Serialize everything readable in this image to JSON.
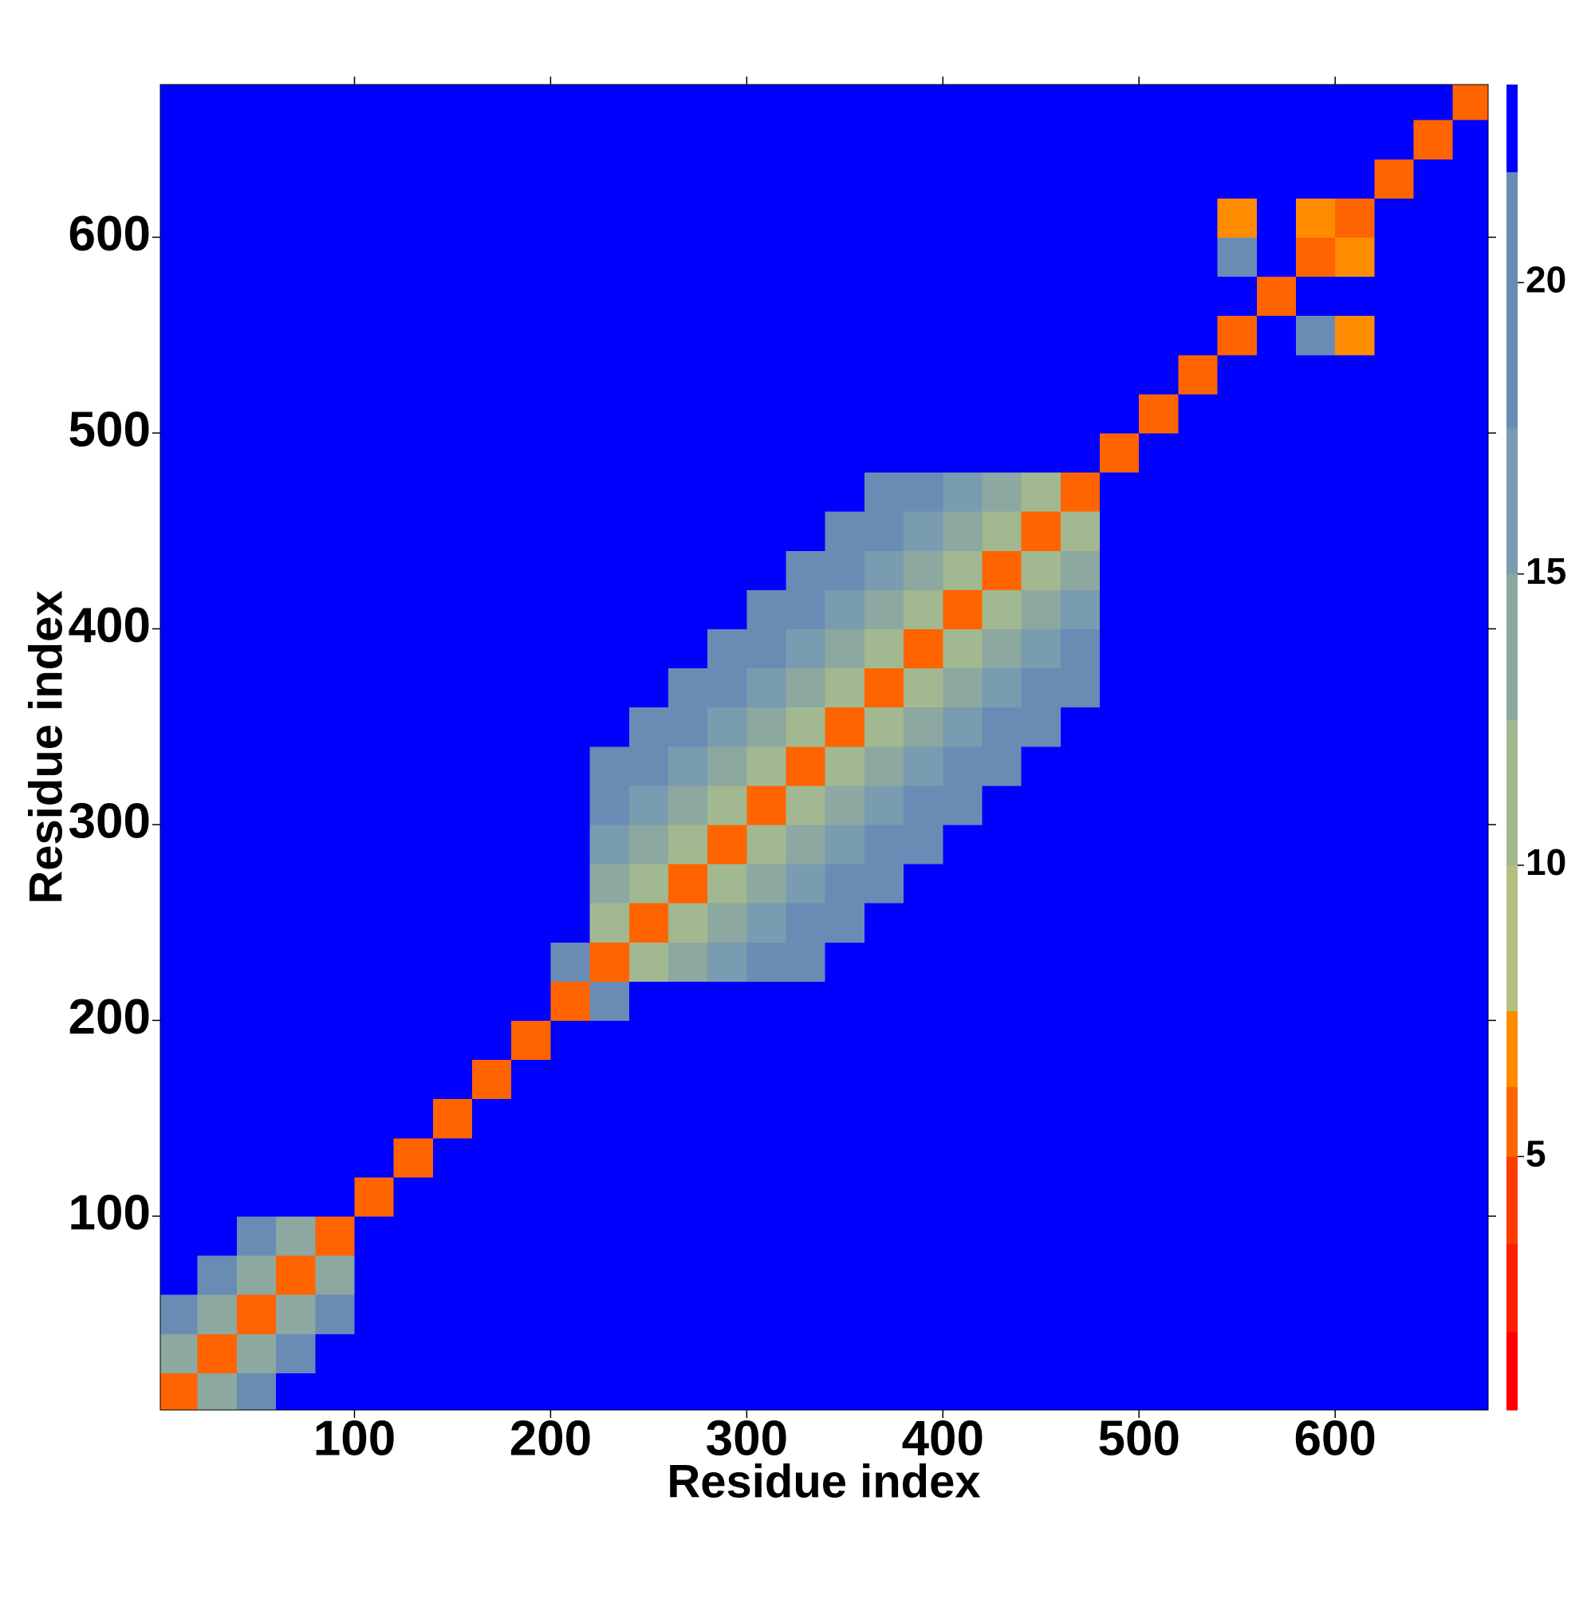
{
  "chart_data": {
    "type": "heatmap",
    "xlabel": "Residue index",
    "ylabel": "Residue index",
    "x": [
      10,
      30,
      50,
      70,
      90,
      110,
      130,
      150,
      170,
      190,
      210,
      230,
      250,
      270,
      290,
      310,
      330,
      350,
      370,
      390,
      410,
      430,
      450,
      470,
      490,
      510,
      530,
      550,
      570,
      590,
      610,
      630,
      650,
      670
    ],
    "y": [
      10,
      30,
      50,
      70,
      90,
      110,
      130,
      150,
      170,
      190,
      210,
      230,
      250,
      270,
      290,
      310,
      330,
      350,
      370,
      390,
      410,
      430,
      450,
      470,
      490,
      510,
      530,
      550,
      570,
      590,
      610,
      630,
      650,
      670
    ],
    "xlim": [
      1,
      678
    ],
    "ylim": [
      1,
      678
    ],
    "xticks": [
      100,
      200,
      300,
      400,
      500,
      600
    ],
    "yticks": [
      100,
      200,
      300,
      400,
      500,
      600
    ],
    "colorbar": {
      "lim": [
        0.65,
        23.4
      ],
      "ticks": [
        5,
        10,
        15,
        20
      ],
      "bounds": [
        0.65,
        2,
        3.5,
        5,
        6.2,
        7.5,
        10,
        12.5,
        15,
        17.5,
        21.9,
        23.4
      ],
      "colors": [
        "#ff0000",
        "#ff1e00",
        "#ff3c00",
        "#ff6400",
        "#ff8c00",
        "#b4c080",
        "#a2b890",
        "#8ca8a0",
        "#7a9cb0",
        "#6a8cb4",
        "#0000ff"
      ]
    },
    "z": [
      [
        6,
        13,
        18,
        23,
        23,
        23,
        23,
        23,
        23,
        23,
        23,
        23,
        23,
        23,
        23,
        23,
        23,
        23,
        23,
        23,
        23,
        23,
        23,
        23,
        23,
        23,
        23,
        23,
        23,
        23,
        23,
        23,
        23,
        23
      ],
      [
        13,
        6,
        13,
        18,
        23,
        23,
        23,
        23,
        23,
        23,
        23,
        23,
        23,
        23,
        23,
        23,
        23,
        23,
        23,
        23,
        23,
        23,
        23,
        23,
        23,
        23,
        23,
        23,
        23,
        23,
        23,
        23,
        23,
        23
      ],
      [
        18,
        13,
        6,
        13,
        18,
        23,
        23,
        23,
        23,
        23,
        23,
        23,
        23,
        23,
        23,
        23,
        23,
        23,
        23,
        23,
        23,
        23,
        23,
        23,
        23,
        23,
        23,
        23,
        23,
        23,
        23,
        23,
        23,
        23
      ],
      [
        23,
        18,
        13,
        6,
        13,
        23,
        23,
        23,
        23,
        23,
        23,
        23,
        23,
        23,
        23,
        23,
        23,
        23,
        23,
        23,
        23,
        23,
        23,
        23,
        23,
        23,
        23,
        23,
        23,
        23,
        23,
        23,
        23,
        23
      ],
      [
        23,
        23,
        18,
        13,
        6,
        23,
        23,
        23,
        23,
        23,
        23,
        23,
        23,
        23,
        23,
        23,
        23,
        23,
        23,
        23,
        23,
        23,
        23,
        23,
        23,
        23,
        23,
        23,
        23,
        23,
        23,
        23,
        23,
        23
      ],
      [
        23,
        23,
        23,
        23,
        23,
        6,
        23,
        23,
        23,
        23,
        23,
        23,
        23,
        23,
        23,
        23,
        23,
        23,
        23,
        23,
        23,
        23,
        23,
        23,
        23,
        23,
        23,
        23,
        23,
        23,
        23,
        23,
        23,
        23
      ],
      [
        23,
        23,
        23,
        23,
        23,
        23,
        6,
        23,
        23,
        23,
        23,
        23,
        23,
        23,
        23,
        23,
        23,
        23,
        23,
        23,
        23,
        23,
        23,
        23,
        23,
        23,
        23,
        23,
        23,
        23,
        23,
        23,
        23,
        23
      ],
      [
        23,
        23,
        23,
        23,
        23,
        23,
        23,
        6,
        23,
        23,
        23,
        23,
        23,
        23,
        23,
        23,
        23,
        23,
        23,
        23,
        23,
        23,
        23,
        23,
        23,
        23,
        23,
        23,
        23,
        23,
        23,
        23,
        23,
        23
      ],
      [
        23,
        23,
        23,
        23,
        23,
        23,
        23,
        23,
        6,
        23,
        23,
        23,
        23,
        23,
        23,
        23,
        23,
        23,
        23,
        23,
        23,
        23,
        23,
        23,
        23,
        23,
        23,
        23,
        23,
        23,
        23,
        23,
        23,
        23
      ],
      [
        23,
        23,
        23,
        23,
        23,
        23,
        23,
        23,
        23,
        6,
        23,
        23,
        23,
        23,
        23,
        23,
        23,
        23,
        23,
        23,
        23,
        23,
        23,
        23,
        23,
        23,
        23,
        23,
        23,
        23,
        23,
        23,
        23,
        23
      ],
      [
        23,
        23,
        23,
        23,
        23,
        23,
        23,
        23,
        23,
        23,
        6,
        18,
        23,
        23,
        23,
        23,
        23,
        23,
        23,
        23,
        23,
        23,
        23,
        23,
        23,
        23,
        23,
        23,
        23,
        23,
        23,
        23,
        23,
        23
      ],
      [
        23,
        23,
        23,
        23,
        23,
        23,
        23,
        23,
        23,
        23,
        18,
        5,
        11,
        14,
        16,
        18,
        20,
        23,
        23,
        23,
        23,
        23,
        23,
        23,
        23,
        23,
        23,
        23,
        23,
        23,
        23,
        23,
        23,
        23
      ],
      [
        23,
        23,
        23,
        23,
        23,
        23,
        23,
        23,
        23,
        23,
        23,
        11,
        5,
        11,
        14,
        16,
        18,
        20,
        23,
        23,
        23,
        23,
        23,
        23,
        23,
        23,
        23,
        23,
        23,
        23,
        23,
        23,
        23,
        23
      ],
      [
        23,
        23,
        23,
        23,
        23,
        23,
        23,
        23,
        23,
        23,
        23,
        14,
        11,
        5,
        11,
        14,
        16,
        18,
        20,
        23,
        23,
        23,
        23,
        23,
        23,
        23,
        23,
        23,
        23,
        23,
        23,
        23,
        23,
        23
      ],
      [
        23,
        23,
        23,
        23,
        23,
        23,
        23,
        23,
        23,
        23,
        23,
        16,
        14,
        11,
        5,
        11,
        14,
        16,
        18,
        20,
        23,
        23,
        23,
        23,
        23,
        23,
        23,
        23,
        23,
        23,
        23,
        23,
        23,
        23
      ],
      [
        23,
        23,
        23,
        23,
        23,
        23,
        23,
        23,
        23,
        23,
        23,
        18,
        16,
        14,
        11,
        5,
        11,
        14,
        16,
        18,
        20,
        23,
        23,
        23,
        23,
        23,
        23,
        23,
        23,
        23,
        23,
        23,
        23,
        23
      ],
      [
        23,
        23,
        23,
        23,
        23,
        23,
        23,
        23,
        23,
        23,
        23,
        20,
        18,
        16,
        14,
        11,
        5,
        11,
        14,
        16,
        18,
        20,
        23,
        23,
        23,
        23,
        23,
        23,
        23,
        23,
        23,
        23,
        23,
        23
      ],
      [
        23,
        23,
        23,
        23,
        23,
        23,
        23,
        23,
        23,
        23,
        23,
        23,
        20,
        18,
        16,
        14,
        11,
        5,
        11,
        14,
        16,
        18,
        20,
        23,
        23,
        23,
        23,
        23,
        23,
        23,
        23,
        23,
        23,
        23
      ],
      [
        23,
        23,
        23,
        23,
        23,
        23,
        23,
        23,
        23,
        23,
        23,
        23,
        23,
        20,
        18,
        16,
        14,
        11,
        5,
        11,
        14,
        16,
        18,
        20,
        23,
        23,
        23,
        23,
        23,
        23,
        23,
        23,
        23,
        23
      ],
      [
        23,
        23,
        23,
        23,
        23,
        23,
        23,
        23,
        23,
        23,
        23,
        23,
        23,
        23,
        20,
        18,
        16,
        14,
        11,
        5,
        11,
        14,
        16,
        18,
        23,
        23,
        23,
        23,
        23,
        23,
        23,
        23,
        23,
        23
      ],
      [
        23,
        23,
        23,
        23,
        23,
        23,
        23,
        23,
        23,
        23,
        23,
        23,
        23,
        23,
        23,
        20,
        18,
        16,
        14,
        11,
        5,
        11,
        14,
        16,
        23,
        23,
        23,
        23,
        23,
        23,
        23,
        23,
        23,
        23
      ],
      [
        23,
        23,
        23,
        23,
        23,
        23,
        23,
        23,
        23,
        23,
        23,
        23,
        23,
        23,
        23,
        23,
        20,
        18,
        16,
        14,
        11,
        5,
        11,
        14,
        23,
        23,
        23,
        23,
        23,
        23,
        23,
        23,
        23,
        23
      ],
      [
        23,
        23,
        23,
        23,
        23,
        23,
        23,
        23,
        23,
        23,
        23,
        23,
        23,
        23,
        23,
        23,
        23,
        20,
        18,
        16,
        14,
        11,
        5,
        11,
        23,
        23,
        23,
        23,
        23,
        23,
        23,
        23,
        23,
        23
      ],
      [
        23,
        23,
        23,
        23,
        23,
        23,
        23,
        23,
        23,
        23,
        23,
        23,
        23,
        23,
        23,
        23,
        23,
        23,
        20,
        18,
        16,
        14,
        11,
        5,
        23,
        23,
        23,
        23,
        23,
        23,
        23,
        23,
        23,
        23
      ],
      [
        23,
        23,
        23,
        23,
        23,
        23,
        23,
        23,
        23,
        23,
        23,
        23,
        23,
        23,
        23,
        23,
        23,
        23,
        23,
        23,
        23,
        23,
        23,
        23,
        6,
        23,
        23,
        23,
        23,
        23,
        23,
        23,
        23,
        23
      ],
      [
        23,
        23,
        23,
        23,
        23,
        23,
        23,
        23,
        23,
        23,
        23,
        23,
        23,
        23,
        23,
        23,
        23,
        23,
        23,
        23,
        23,
        23,
        23,
        23,
        23,
        6,
        23,
        23,
        23,
        23,
        23,
        23,
        23,
        23
      ],
      [
        23,
        23,
        23,
        23,
        23,
        23,
        23,
        23,
        23,
        23,
        23,
        23,
        23,
        23,
        23,
        23,
        23,
        23,
        23,
        23,
        23,
        23,
        23,
        23,
        23,
        23,
        6,
        23,
        23,
        23,
        23,
        23,
        23,
        23
      ],
      [
        23,
        23,
        23,
        23,
        23,
        23,
        23,
        23,
        23,
        23,
        23,
        23,
        23,
        23,
        23,
        23,
        23,
        23,
        23,
        23,
        23,
        23,
        23,
        23,
        23,
        23,
        23,
        6,
        23,
        19,
        7,
        23,
        23,
        23
      ],
      [
        23,
        23,
        23,
        23,
        23,
        23,
        23,
        23,
        23,
        23,
        23,
        23,
        23,
        23,
        23,
        23,
        23,
        23,
        23,
        23,
        23,
        23,
        23,
        23,
        23,
        23,
        23,
        23,
        6,
        23,
        23,
        23,
        23,
        23
      ],
      [
        23,
        23,
        23,
        23,
        23,
        23,
        23,
        23,
        23,
        23,
        23,
        23,
        23,
        23,
        23,
        23,
        23,
        23,
        23,
        23,
        23,
        23,
        23,
        23,
        23,
        23,
        23,
        19,
        23,
        6,
        7,
        23,
        23,
        23
      ],
      [
        23,
        23,
        23,
        23,
        23,
        23,
        23,
        23,
        23,
        23,
        23,
        23,
        23,
        23,
        23,
        23,
        23,
        23,
        23,
        23,
        23,
        23,
        23,
        23,
        23,
        23,
        23,
        7,
        23,
        7,
        6,
        23,
        23,
        23
      ],
      [
        23,
        23,
        23,
        23,
        23,
        23,
        23,
        23,
        23,
        23,
        23,
        23,
        23,
        23,
        23,
        23,
        23,
        23,
        23,
        23,
        23,
        23,
        23,
        23,
        23,
        23,
        23,
        23,
        23,
        23,
        23,
        6,
        23,
        23
      ],
      [
        23,
        23,
        23,
        23,
        23,
        23,
        23,
        23,
        23,
        23,
        23,
        23,
        23,
        23,
        23,
        23,
        23,
        23,
        23,
        23,
        23,
        23,
        23,
        23,
        23,
        23,
        23,
        23,
        23,
        23,
        23,
        23,
        6,
        23
      ],
      [
        23,
        23,
        23,
        23,
        23,
        23,
        23,
        23,
        23,
        23,
        23,
        23,
        23,
        23,
        23,
        23,
        23,
        23,
        23,
        23,
        23,
        23,
        23,
        23,
        23,
        23,
        23,
        23,
        23,
        23,
        23,
        23,
        23,
        6
      ]
    ]
  }
}
